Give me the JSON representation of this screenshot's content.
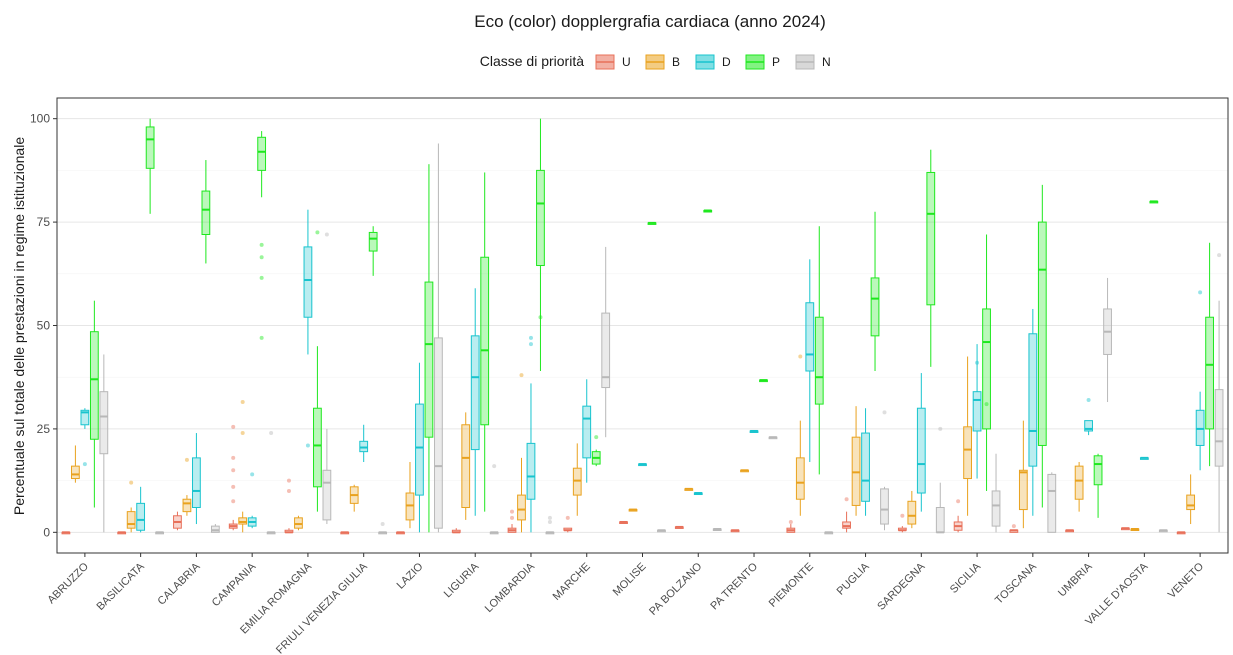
{
  "chart_data": {
    "type": "boxplot",
    "title": "Eco (color) dopplergrafia cardiaca (anno 2024)",
    "xlabel": "",
    "ylabel": "Percentuale sul totale delle prestazioni in regime istituzionale",
    "ylim": [
      -5,
      105
    ],
    "yticks": [
      0,
      25,
      50,
      75,
      100
    ],
    "grid": true,
    "legend": {
      "title": "Classe di priorità",
      "placement": "top",
      "entries": [
        {
          "key": "U",
          "color": "#E8705A"
        },
        {
          "key": "B",
          "color": "#E9A21E"
        },
        {
          "key": "D",
          "color": "#18C4CE"
        },
        {
          "key": "P",
          "color": "#1EE81E"
        },
        {
          "key": "N",
          "color": "#B8B8B8"
        }
      ]
    },
    "categories": [
      "ABRUZZO",
      "BASILICATA",
      "CALABRIA",
      "CAMPANIA",
      "EMILIA ROMAGNA",
      "FRIULI VENEZIA GIULIA",
      "LAZIO",
      "LIGURIA",
      "LOMBARDIA",
      "MARCHE",
      "MOLISE",
      "PA BOLZANO",
      "PA TRENTO",
      "PIEMONTE",
      "PUGLIA",
      "SARDEGNA",
      "SICILIA",
      "TOSCANA",
      "UMBRIA",
      "VALLE D'AOSTA",
      "VENETO"
    ],
    "series_order": [
      "U",
      "B",
      "D",
      "P",
      "N"
    ],
    "boxes": [
      {
        "region": "ABRUZZO",
        "U": [
          0,
          0,
          0,
          0,
          0
        ],
        "B": [
          12,
          13,
          14,
          16,
          21
        ],
        "D": [
          25,
          26,
          29,
          29.5,
          30
        ],
        "P": [
          6,
          22.5,
          37,
          48.5,
          56
        ],
        "N": [
          0,
          19,
          28,
          34,
          43
        ]
      },
      {
        "region": "BASILICATA",
        "U": [
          0,
          0,
          0,
          0,
          0
        ],
        "B": [
          0,
          1,
          2,
          5,
          6
        ],
        "D": [
          0,
          0.5,
          3,
          7,
          11
        ],
        "P": [
          77,
          88,
          95,
          98,
          100
        ],
        "N": [
          0,
          0,
          0,
          0,
          0
        ]
      },
      {
        "region": "CALABRIA",
        "U": [
          0.5,
          1,
          2.5,
          4,
          5
        ],
        "B": [
          4,
          5,
          7,
          8,
          9
        ],
        "D": [
          2,
          6,
          10,
          18,
          24
        ],
        "P": [
          65,
          72,
          78,
          82.5,
          90
        ],
        "N": [
          0,
          0,
          0.5,
          1.5,
          2
        ]
      },
      {
        "region": "CAMPANIA",
        "U": [
          0.5,
          1,
          1.5,
          2,
          3
        ],
        "B": [
          0,
          2,
          2.5,
          3.5,
          5
        ],
        "D": [
          1,
          1.5,
          2.5,
          3.5,
          4
        ],
        "P": [
          81,
          87.5,
          92,
          95.5,
          97
        ],
        "N": [
          0,
          0,
          0,
          0,
          0
        ]
      },
      {
        "region": "EMILIA ROMAGNA",
        "U": [
          0,
          0,
          0,
          0.5,
          1
        ],
        "B": [
          0.5,
          1,
          2,
          3.5,
          4
        ],
        "D": [
          43,
          52,
          61,
          69,
          78
        ],
        "P": [
          5,
          11,
          21,
          30,
          45
        ],
        "N": [
          2,
          3,
          12,
          15,
          25
        ]
      },
      {
        "region": "FRIULI VENEZIA GIULIA",
        "U": [
          0,
          0,
          0,
          0,
          0
        ],
        "B": [
          5,
          7,
          9,
          11,
          11.5
        ],
        "D": [
          17,
          19.5,
          20.5,
          22,
          26
        ],
        "P": [
          62,
          68,
          71,
          72.5,
          74
        ],
        "N": [
          0,
          0,
          0,
          0,
          0
        ]
      },
      {
        "region": "LAZIO",
        "U": [
          0,
          0,
          0,
          0,
          0
        ],
        "B": [
          1,
          3,
          6.5,
          9.5,
          17
        ],
        "D": [
          0,
          9,
          20.5,
          31,
          41
        ],
        "P": [
          0,
          23,
          45.5,
          60.5,
          89
        ],
        "N": [
          0,
          1,
          16,
          47,
          94
        ]
      },
      {
        "region": "LIGURIA",
        "U": [
          0,
          0,
          0,
          0.5,
          1
        ],
        "B": [
          3,
          6,
          18,
          26,
          29
        ],
        "D": [
          4,
          20,
          37.5,
          47.5,
          59
        ],
        "P": [
          5,
          26,
          44,
          66.5,
          87
        ],
        "N": [
          0,
          0,
          0,
          0,
          0
        ]
      },
      {
        "region": "LOMBARDIA",
        "U": [
          0,
          0,
          0.5,
          1,
          2
        ],
        "B": [
          0,
          3,
          5.5,
          9,
          18
        ],
        "D": [
          0,
          8,
          13.5,
          21.5,
          36
        ],
        "P": [
          39,
          64.5,
          79.5,
          87.5,
          100
        ],
        "N": [
          0,
          0,
          0,
          0,
          0
        ]
      },
      {
        "region": "MARCHE",
        "U": [
          0,
          0.5,
          0.5,
          1,
          1
        ],
        "B": [
          4,
          9,
          12.5,
          15.5,
          21.5
        ],
        "D": [
          12,
          18,
          27.5,
          30.5,
          37
        ],
        "P": [
          16,
          16.5,
          18,
          19.5,
          20
        ],
        "N": [
          23,
          35,
          37.5,
          53,
          69
        ]
      },
      {
        "region": "MOLISE",
        "U": [
          2.5,
          2.5,
          2.5,
          2.5,
          2.5
        ],
        "B": [
          5.5,
          5.5,
          5.5,
          5.5,
          5.5
        ],
        "D": [
          16.5,
          16.5,
          16.5,
          16.5,
          16.5
        ],
        "P": [
          74.8,
          74.8,
          74.8,
          74.8,
          74.8
        ],
        "N": [
          0.5,
          0.5,
          0.5,
          0.5,
          0.5
        ]
      },
      {
        "region": "PA BOLZANO",
        "U": [
          1.3,
          1.3,
          1.3,
          1.3,
          1.3
        ],
        "B": [
          10.5,
          10.5,
          10.5,
          10.5,
          10.5
        ],
        "D": [
          9.5,
          9.5,
          9.5,
          9.5,
          9.5
        ],
        "P": [
          77.8,
          77.8,
          77.8,
          77.8,
          77.8
        ],
        "N": [
          0.8,
          0.8,
          0.8,
          0.8,
          0.8
        ]
      },
      {
        "region": "PA TRENTO",
        "U": [
          0.5,
          0.5,
          0.5,
          0.5,
          0.5
        ],
        "B": [
          15,
          15,
          15,
          15,
          15
        ],
        "D": [
          24.5,
          24.5,
          24.5,
          24.5,
          24.5
        ],
        "P": [
          36.8,
          36.8,
          36.8,
          36.8,
          36.8
        ],
        "N": [
          23,
          23,
          23,
          23,
          23
        ]
      },
      {
        "region": "PIEMONTE",
        "U": [
          0,
          0,
          0.5,
          1,
          2
        ],
        "B": [
          4,
          8,
          12,
          18,
          27
        ],
        "D": [
          17,
          39,
          43,
          55.5,
          66
        ],
        "P": [
          14,
          31,
          37.5,
          52,
          74
        ],
        "N": [
          0,
          0,
          0,
          0,
          0
        ]
      },
      {
        "region": "PUGLIA",
        "U": [
          0,
          1,
          1.5,
          2.5,
          5
        ],
        "B": [
          4,
          6.5,
          14.5,
          23,
          30.5
        ],
        "D": [
          4,
          7.5,
          12.5,
          24,
          30
        ],
        "P": [
          39,
          47.5,
          56.5,
          61.5,
          77.5
        ],
        "N": [
          0.5,
          2,
          5.5,
          10.5,
          11
        ]
      },
      {
        "region": "SARDEGNA",
        "U": [
          0,
          0.5,
          0.5,
          1,
          1.5
        ],
        "B": [
          1,
          2,
          4,
          7.5,
          10
        ],
        "D": [
          5,
          9.5,
          16.5,
          30,
          38.5
        ],
        "P": [
          40,
          55,
          77,
          87,
          92.5
        ],
        "N": [
          0,
          0,
          0,
          6,
          12
        ]
      },
      {
        "region": "SICILIA",
        "U": [
          0,
          0.5,
          1.5,
          2.5,
          4
        ],
        "B": [
          4,
          13,
          20,
          25.5,
          42.5
        ],
        "D": [
          13,
          24.5,
          32,
          34,
          45.5
        ],
        "P": [
          10,
          25,
          46,
          54,
          72
        ],
        "N": [
          0,
          1.5,
          6.5,
          10,
          19
        ]
      },
      {
        "region": "TOSCANA",
        "U": [
          0,
          0,
          0.5,
          0.5,
          0.5
        ],
        "B": [
          1,
          5.5,
          14.5,
          15,
          27
        ],
        "D": [
          4,
          16,
          24.5,
          48,
          54
        ],
        "P": [
          6,
          21,
          63.5,
          75,
          84
        ],
        "N": [
          0,
          0,
          10,
          14,
          14.5
        ]
      },
      {
        "region": "UMBRIA",
        "U": [
          0.5,
          0.5,
          0.5,
          0.5,
          0.5
        ],
        "B": [
          5,
          8,
          12.5,
          16,
          17
        ],
        "D": [
          23.5,
          24.5,
          25,
          27,
          27
        ],
        "P": [
          3.5,
          11.5,
          16.5,
          18.5,
          19
        ],
        "N": [
          31.5,
          43,
          48.5,
          54,
          61.5
        ]
      },
      {
        "region": "VALLE D'AOSTA",
        "U": [
          1,
          1,
          1,
          1,
          1
        ],
        "B": [
          0.8,
          0.8,
          0.8,
          0.8,
          0.8
        ],
        "D": [
          18,
          18,
          18,
          18,
          18
        ],
        "P": [
          80,
          80,
          80,
          80,
          80
        ],
        "N": [
          0.5,
          0.5,
          0.5,
          0.5,
          0.5
        ]
      },
      {
        "region": "VENETO",
        "U": [
          0,
          0,
          0,
          0,
          0
        ],
        "B": [
          2,
          5.5,
          6.5,
          9,
          14
        ],
        "D": [
          15,
          21,
          25,
          29.5,
          34
        ],
        "P": [
          16,
          25,
          40.5,
          52,
          70
        ],
        "N": [
          0,
          16,
          22,
          34.5,
          56
        ]
      }
    ],
    "outliers": [
      {
        "region": "ABRUZZO",
        "series": "D",
        "value": 16.5
      },
      {
        "region": "BASILICATA",
        "series": "B",
        "value": 12
      },
      {
        "region": "CALABRIA",
        "series": "B",
        "value": 17.5
      },
      {
        "region": "CAMPANIA",
        "series": "U",
        "value": 25.5
      },
      {
        "region": "CAMPANIA",
        "series": "U",
        "value": 18
      },
      {
        "region": "CAMPANIA",
        "series": "U",
        "value": 15
      },
      {
        "region": "CAMPANIA",
        "series": "U",
        "value": 11
      },
      {
        "region": "CAMPANIA",
        "series": "U",
        "value": 7.5
      },
      {
        "region": "CAMPANIA",
        "series": "B",
        "value": 31.5
      },
      {
        "region": "CAMPANIA",
        "series": "B",
        "value": 24
      },
      {
        "region": "CAMPANIA",
        "series": "D",
        "value": 14
      },
      {
        "region": "CAMPANIA",
        "series": "P",
        "value": 69.5
      },
      {
        "region": "CAMPANIA",
        "series": "P",
        "value": 66.5
      },
      {
        "region": "CAMPANIA",
        "series": "P",
        "value": 61.5
      },
      {
        "region": "CAMPANIA",
        "series": "P",
        "value": 47
      },
      {
        "region": "CAMPANIA",
        "series": "N",
        "value": 24
      },
      {
        "region": "EMILIA ROMAGNA",
        "series": "U",
        "value": 12.5
      },
      {
        "region": "EMILIA ROMAGNA",
        "series": "U",
        "value": 10
      },
      {
        "region": "EMILIA ROMAGNA",
        "series": "D",
        "value": 21
      },
      {
        "region": "EMILIA ROMAGNA",
        "series": "P",
        "value": 72.5
      },
      {
        "region": "EMILIA ROMAGNA",
        "series": "N",
        "value": 72
      },
      {
        "region": "FRIULI VENEZIA GIULIA",
        "series": "N",
        "value": 2
      },
      {
        "region": "LIGURIA",
        "series": "N",
        "value": 16
      },
      {
        "region": "LOMBARDIA",
        "series": "U",
        "value": 5
      },
      {
        "region": "LOMBARDIA",
        "series": "U",
        "value": 3.5
      },
      {
        "region": "LOMBARDIA",
        "series": "B",
        "value": 38
      },
      {
        "region": "LOMBARDIA",
        "series": "D",
        "value": 47
      },
      {
        "region": "LOMBARDIA",
        "series": "D",
        "value": 45.5
      },
      {
        "region": "LOMBARDIA",
        "series": "P",
        "value": 52
      },
      {
        "region": "LOMBARDIA",
        "series": "N",
        "value": 3.5
      },
      {
        "region": "LOMBARDIA",
        "series": "N",
        "value": 2.5
      },
      {
        "region": "MARCHE",
        "series": "U",
        "value": 3.5
      },
      {
        "region": "MARCHE",
        "series": "P",
        "value": 23
      },
      {
        "region": "PIEMONTE",
        "series": "U",
        "value": 2.5
      },
      {
        "region": "PIEMONTE",
        "series": "B",
        "value": 42.5
      },
      {
        "region": "PUGLIA",
        "series": "U",
        "value": 8
      },
      {
        "region": "PUGLIA",
        "series": "N",
        "value": 29
      },
      {
        "region": "SARDEGNA",
        "series": "U",
        "value": 4
      },
      {
        "region": "SARDEGNA",
        "series": "N",
        "value": 25
      },
      {
        "region": "SICILIA",
        "series": "U",
        "value": 7.5
      },
      {
        "region": "SICILIA",
        "series": "D",
        "value": 41
      },
      {
        "region": "SICILIA",
        "series": "P",
        "value": 31
      },
      {
        "region": "TOSCANA",
        "series": "U",
        "value": 1.5
      },
      {
        "region": "UMBRIA",
        "series": "D",
        "value": 32
      },
      {
        "region": "VENETO",
        "series": "D",
        "value": 58
      },
      {
        "region": "VENETO",
        "series": "N",
        "value": 67
      }
    ]
  }
}
